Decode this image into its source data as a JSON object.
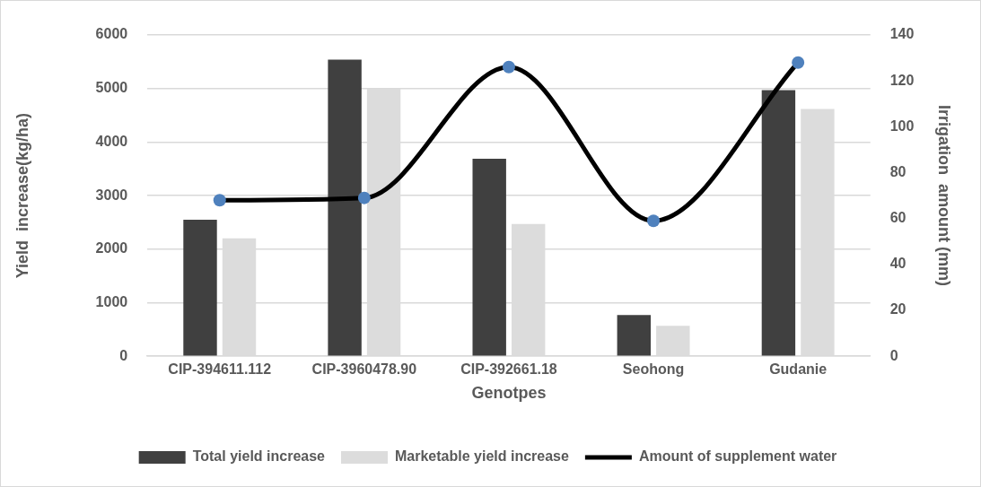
{
  "chart_data": {
    "type": "bar",
    "xlabel": "Genotpes",
    "ylabel": "Yield  increase(kg/ha)",
    "y2label": "Irrigation  amount (mm)",
    "categories": [
      "CIP-394611.112",
      "CIP-3960478.90",
      "CIP-392661.18",
      "Seohong",
      "Gudanie"
    ],
    "series": [
      {
        "name": "Total yield increase",
        "color": "#404040",
        "values": [
          2550,
          5540,
          3690,
          770,
          4970
        ]
      },
      {
        "name": "Marketable yield increase",
        "color": "#dcdcdc",
        "values": [
          2200,
          5000,
          2470,
          570,
          4620
        ]
      },
      {
        "name": "Amount of supplement water",
        "type": "line",
        "axis": "y2",
        "color": "#000000",
        "colors": [
          "#4f81bd",
          "#4f81bd",
          "#4f81bd",
          "#4f81bd",
          "#4f81bd"
        ],
        "values": [
          68,
          69,
          126,
          59,
          128
        ]
      }
    ],
    "ylim": [
      0,
      6000
    ],
    "yticks": [
      0,
      1000,
      2000,
      3000,
      4000,
      5000,
      6000
    ],
    "y2lim": [
      0,
      140
    ],
    "y2ticks": [
      0,
      20,
      40,
      60,
      80,
      100,
      120,
      140
    ],
    "grid": "y",
    "legend": "bottom",
    "marker": "circle",
    "line_style": "solid"
  }
}
